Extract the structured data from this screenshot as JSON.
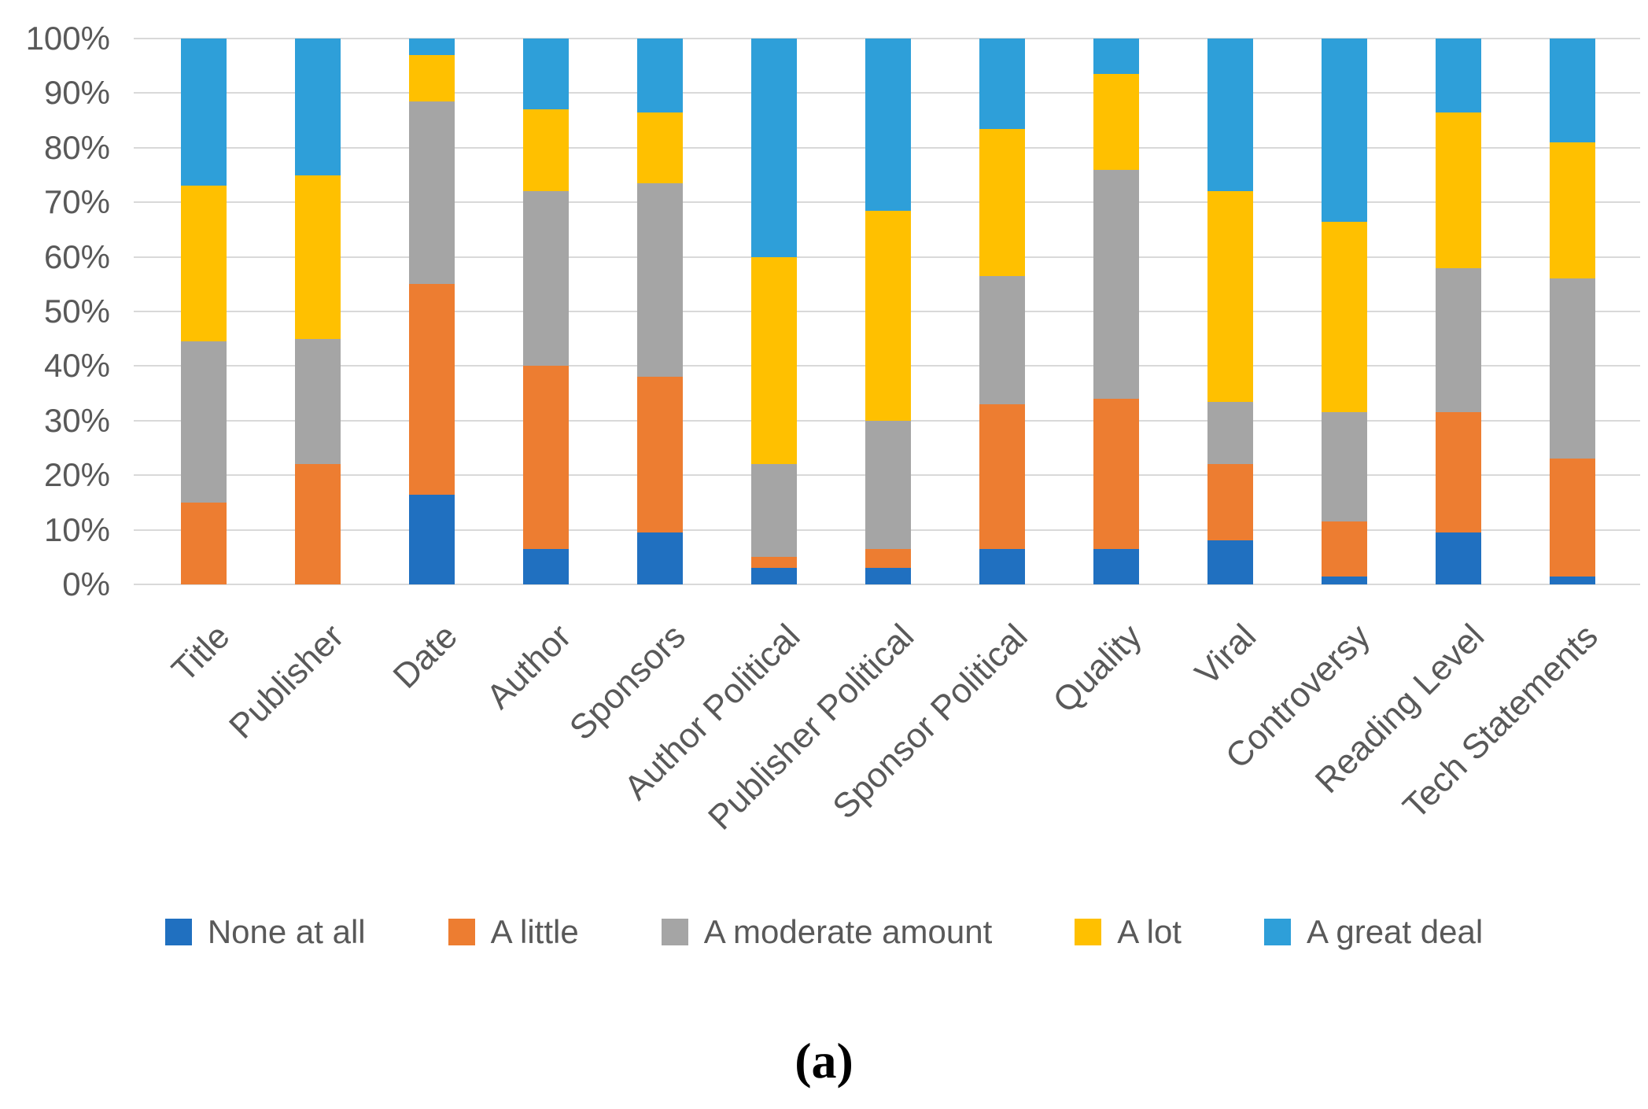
{
  "chart_data": {
    "type": "bar",
    "stacked": true,
    "units": "percent",
    "title": "",
    "categories": [
      "Title",
      "Publisher",
      "Date",
      "Author",
      "Sponsors",
      "Author Political",
      "Publisher Political",
      "Sponsor Political",
      "Quality",
      "Viral",
      "Controversy",
      "Reading Level",
      "Tech Statements"
    ],
    "series": [
      {
        "name": "None at all",
        "color": "#2070C0",
        "values": [
          0,
          0,
          16.5,
          6.5,
          9.5,
          3,
          3,
          6.5,
          6.5,
          8,
          1.5,
          9.5,
          1.5
        ]
      },
      {
        "name": "A little",
        "color": "#ED7D31",
        "values": [
          15,
          22,
          38.5,
          33.5,
          28.5,
          2,
          3.5,
          26.5,
          27.5,
          14,
          10,
          22,
          21.5
        ]
      },
      {
        "name": "A moderate amount",
        "color": "#A5A5A5",
        "values": [
          29.5,
          23,
          33.5,
          32,
          35.5,
          17,
          23.5,
          23.5,
          42,
          11.5,
          20,
          26.5,
          33
        ]
      },
      {
        "name": "A lot",
        "color": "#FFC000",
        "values": [
          28.5,
          30,
          8.5,
          15,
          13,
          38,
          38.5,
          27,
          17.5,
          38.5,
          35,
          28.5,
          25
        ]
      },
      {
        "name": "A great deal",
        "color": "#2E9FD9",
        "values": [
          27,
          25,
          3,
          13,
          13.5,
          40,
          31.5,
          16.5,
          6.5,
          28,
          33.5,
          13.5,
          19
        ]
      }
    ],
    "y_axis": {
      "min": 0,
      "max": 100,
      "ticks": [
        "0%",
        "10%",
        "20%",
        "30%",
        "40%",
        "50%",
        "60%",
        "70%",
        "80%",
        "90%",
        "100%"
      ],
      "grid": true
    },
    "legend_position": "bottom"
  },
  "caption": "(a)",
  "colors": {
    "background": "#FFFFFF",
    "gridline": "#D9D9D9",
    "tick_text": "#595959"
  }
}
